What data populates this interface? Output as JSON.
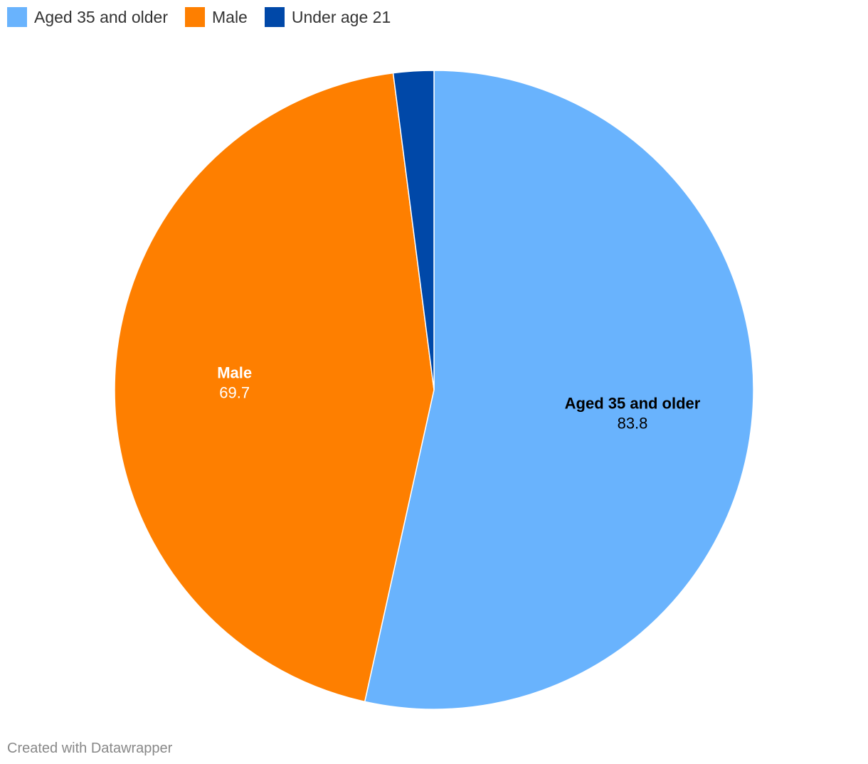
{
  "chart_data": {
    "type": "pie",
    "categories": [
      "Aged 35 and older",
      "Male",
      "Under age 21"
    ],
    "values": [
      83.8,
      69.7,
      3.2
    ],
    "colors": [
      "#69b3fd",
      "#fe7f00",
      "#0048a8"
    ],
    "data_labels": [
      {
        "name": "Aged 35 and older",
        "value": "83.8",
        "label_color": "#000000"
      },
      {
        "name": "Male",
        "value": "69.7",
        "label_color": "#ffffff"
      }
    ],
    "legend_position": "top-left"
  },
  "footer": {
    "credit": "Created with Datawrapper"
  }
}
